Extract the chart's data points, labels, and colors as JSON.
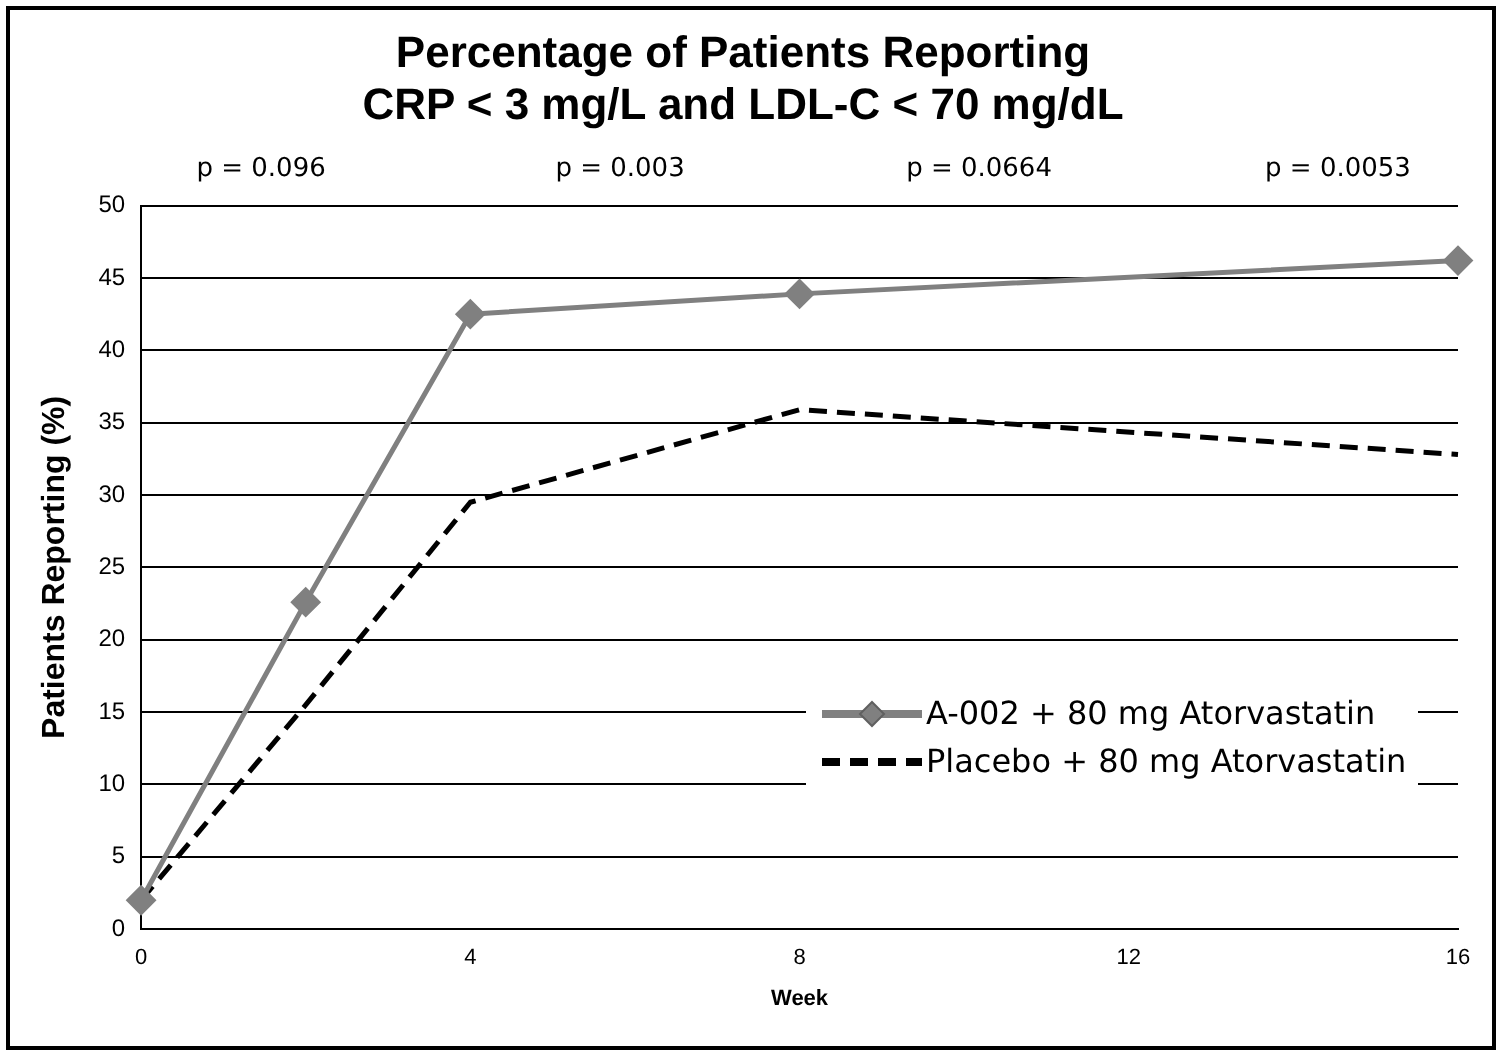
{
  "chart_data": {
    "type": "line",
    "title": "Percentage of Patients Reporting\nCRP < 3 mg/L and LDL-C < 70 mg/dL",
    "xlabel": "Week",
    "ylabel": "Patients Reporting (%)",
    "xlim": [
      0,
      16
    ],
    "xticks": [
      0,
      4,
      8,
      12,
      16
    ],
    "ylim": [
      0,
      50
    ],
    "yticks": [
      0,
      5,
      10,
      15,
      20,
      25,
      30,
      35,
      40,
      45,
      50
    ],
    "grid": "y",
    "legend": "bottom right",
    "series": [
      {
        "name": "A-002 + 80 mg Atorvastatin",
        "color": "#808080",
        "x": [
          0,
          2,
          4,
          8,
          16
        ],
        "values": [
          2.0,
          22.6,
          42.5,
          43.9,
          46.2
        ],
        "marker": "diamond",
        "line_style": "solid"
      },
      {
        "name": "Placebo + 80 mg Atorvastatin",
        "color": "#000000",
        "x": [
          0,
          2,
          4,
          8,
          16
        ],
        "values": [
          2.0,
          15.5,
          29.5,
          35.9,
          32.8
        ],
        "marker": "none",
        "line_style": "dashed"
      }
    ],
    "annotations": [
      "p = 0.096",
      "p = 0.003",
      "p = 0.0664",
      "p = 0.0053"
    ]
  }
}
